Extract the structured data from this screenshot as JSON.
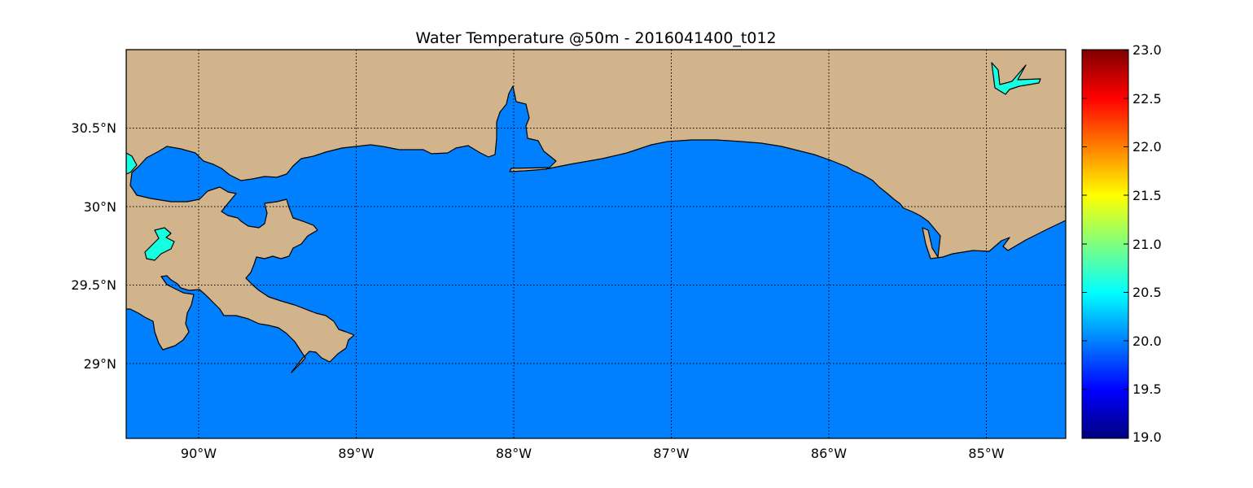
{
  "title": "Water Temperature @50m - 2016041400_t012",
  "map": {
    "lon_range": [
      -90.5,
      -84.5
    ],
    "lat_range": [
      28.5,
      30.97
    ],
    "lon_ticks": [
      {
        "value": -90,
        "label": "90°W"
      },
      {
        "value": -89,
        "label": "89°W"
      },
      {
        "value": -88,
        "label": "88°W"
      },
      {
        "value": -87,
        "label": "87°W"
      },
      {
        "value": -86,
        "label": "86°W"
      },
      {
        "value": -85,
        "label": "85°W"
      }
    ],
    "lat_ticks": [
      {
        "value": 30.5,
        "label": "30.5°N"
      },
      {
        "value": 30.0,
        "label": "30°N"
      },
      {
        "value": 29.5,
        "label": "29.5°N"
      },
      {
        "value": 29.0,
        "label": "29°N"
      }
    ],
    "grid": true,
    "colors": {
      "land": "#d2b48c",
      "water_field": "#0080ff",
      "inland_water": "#16ffe1",
      "coastline": "#000000"
    }
  },
  "colorbar": {
    "colormap": "jet",
    "min": 19.0,
    "max": 23.0,
    "ticks": [
      "23.0",
      "22.5",
      "22.0",
      "21.5",
      "21.0",
      "20.5",
      "20.0",
      "19.5",
      "19.0"
    ]
  }
}
